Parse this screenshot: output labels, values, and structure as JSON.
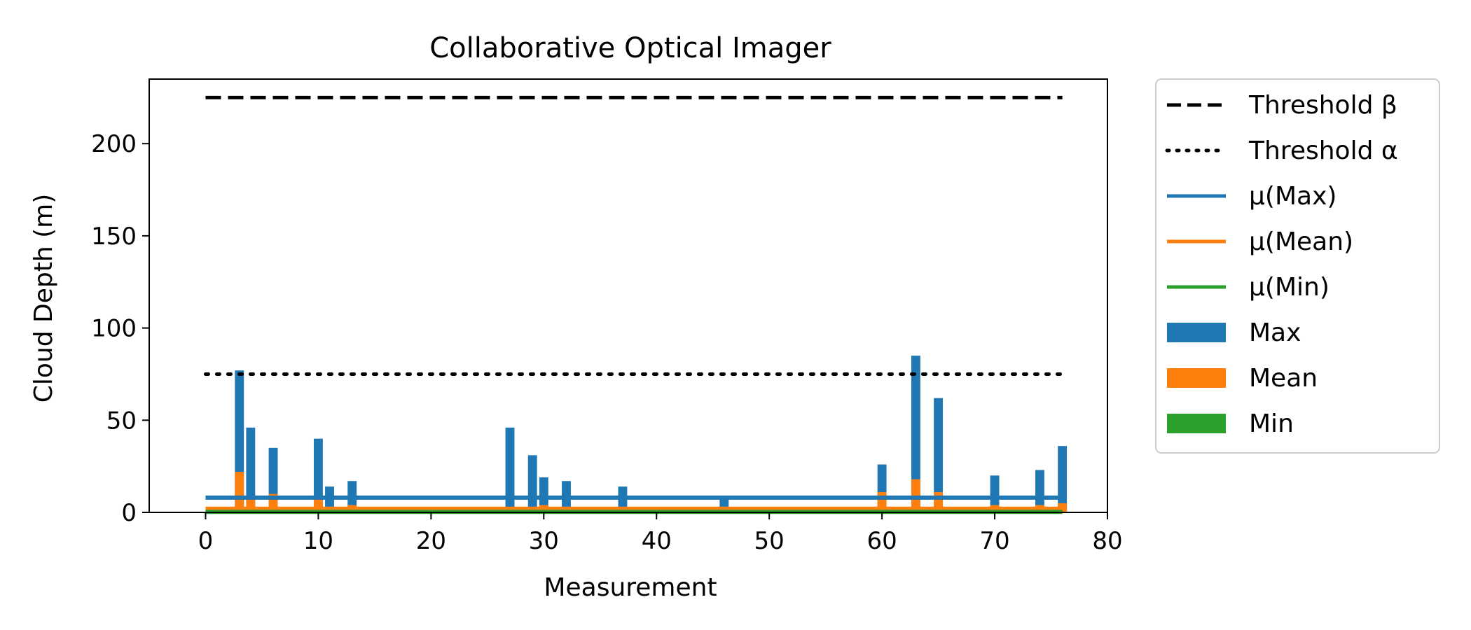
{
  "chart_data": {
    "type": "bar",
    "title": "Collaborative Optical Imager",
    "xlabel": "Measurement",
    "ylabel": "Cloud Depth (m)",
    "xlim": [
      -5,
      80
    ],
    "ylim": [
      0,
      235
    ],
    "xticks": [
      0,
      10,
      20,
      30,
      40,
      50,
      60,
      70,
      80
    ],
    "yticks": [
      0,
      50,
      100,
      150,
      200
    ],
    "legend_position": "outside-right",
    "thresholds": [
      {
        "name": "Threshold β",
        "value": 225,
        "style": "dashed",
        "color": "#000000"
      },
      {
        "name": "Threshold α",
        "value": 75,
        "style": "dotted",
        "color": "#000000"
      }
    ],
    "mean_lines": [
      {
        "name": "μ(Max)",
        "value": 8,
        "color": "#1f77b4"
      },
      {
        "name": "μ(Mean)",
        "value": 2,
        "color": "#ff7f0e"
      },
      {
        "name": "μ(Min)",
        "value": 0.3,
        "color": "#2ca02c"
      }
    ],
    "line_x_range": [
      0,
      76
    ],
    "series": [
      {
        "name": "Max",
        "color": "#1f77b4",
        "x": [
          3,
          4,
          6,
          10,
          11,
          13,
          27,
          29,
          30,
          32,
          37,
          46,
          50,
          52,
          60,
          63,
          65,
          70,
          73,
          74,
          76
        ],
        "values": [
          77,
          46,
          35,
          40,
          14,
          17,
          46,
          31,
          19,
          17,
          14,
          8,
          3,
          2,
          26,
          85,
          62,
          20,
          3,
          23,
          36
        ]
      },
      {
        "name": "Mean",
        "color": "#ff7f0e",
        "x": [
          3,
          4,
          6,
          10,
          11,
          13,
          27,
          29,
          30,
          32,
          37,
          46,
          50,
          52,
          60,
          63,
          65,
          70,
          73,
          74,
          76
        ],
        "values": [
          22,
          7,
          10,
          7,
          2,
          4,
          2,
          2,
          4,
          2,
          2,
          2,
          1,
          1,
          11,
          18,
          11,
          4,
          1,
          4,
          5
        ]
      },
      {
        "name": "Min",
        "color": "#2ca02c",
        "x": [
          3,
          4,
          6,
          10,
          11,
          13,
          27,
          29,
          30,
          32,
          37,
          46,
          50,
          52,
          60,
          63,
          65,
          70,
          73,
          74,
          76
        ],
        "values": [
          0.3,
          0.3,
          0.3,
          0.3,
          0.3,
          0.3,
          0.3,
          0.3,
          0.3,
          0.3,
          0.3,
          0.3,
          0.3,
          0.3,
          0.3,
          0.3,
          0.3,
          0.3,
          0.3,
          0.3,
          0.3
        ]
      }
    ],
    "legend": [
      {
        "label": "Threshold β",
        "kind": "line",
        "style": "dashed",
        "color": "#000000"
      },
      {
        "label": "Threshold α",
        "kind": "line",
        "style": "dotted",
        "color": "#000000"
      },
      {
        "label": "μ(Max)",
        "kind": "line",
        "style": "solid",
        "color": "#1f77b4"
      },
      {
        "label": "μ(Mean)",
        "kind": "line",
        "style": "solid",
        "color": "#ff7f0e"
      },
      {
        "label": "μ(Min)",
        "kind": "line",
        "style": "solid",
        "color": "#2ca02c"
      },
      {
        "label": "Max",
        "kind": "patch",
        "color": "#1f77b4"
      },
      {
        "label": "Mean",
        "kind": "patch",
        "color": "#ff7f0e"
      },
      {
        "label": "Min",
        "kind": "patch",
        "color": "#2ca02c"
      }
    ]
  }
}
